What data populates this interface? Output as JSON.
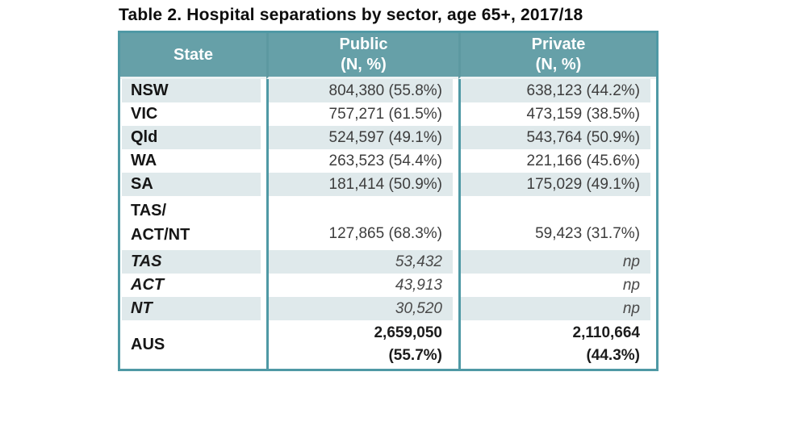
{
  "title": "Table 2. Hospital separations by sector, age 65+, 2017/18",
  "table": {
    "columns": [
      {
        "label": "State",
        "sublabel": ""
      },
      {
        "label": "Public",
        "sublabel": "(N, %)"
      },
      {
        "label": "Private",
        "sublabel": "(N, %)"
      }
    ],
    "rows": [
      {
        "state": "NSW",
        "public": "804,380 (55.8%)",
        "private": "638,123 (44.2%)"
      },
      {
        "state": "VIC",
        "public": "757,271 (61.5%)",
        "private": "473,159 (38.5%)"
      },
      {
        "state": "Qld",
        "public": "524,597 (49.1%)",
        "private": "543,764 (50.9%)"
      },
      {
        "state": "WA",
        "public": "263,523 (54.4%)",
        "private": "221,166 (45.6%)"
      },
      {
        "state": "SA",
        "public": "181,414 (50.9%)",
        "private": "175,029 (49.1%)"
      },
      {
        "state": "TAS/\nACT/NT",
        "public": "127,865 (68.3%)",
        "private": "59,423 (31.7%)"
      },
      {
        "state": "TAS",
        "public": "53,432",
        "private": "np"
      },
      {
        "state": "ACT",
        "public": "43,913",
        "private": "np"
      },
      {
        "state": "NT",
        "public": "30,520",
        "private": "np"
      },
      {
        "state": "AUS",
        "public": "2,659,050\n(55.7%)",
        "private": "2,110,664\n(44.3%)"
      }
    ]
  },
  "colors": {
    "header_bg": "#66a0a8",
    "border": "#4f99a5",
    "row_shaded": "#dfe9eb",
    "header_text": "#ffffff"
  }
}
